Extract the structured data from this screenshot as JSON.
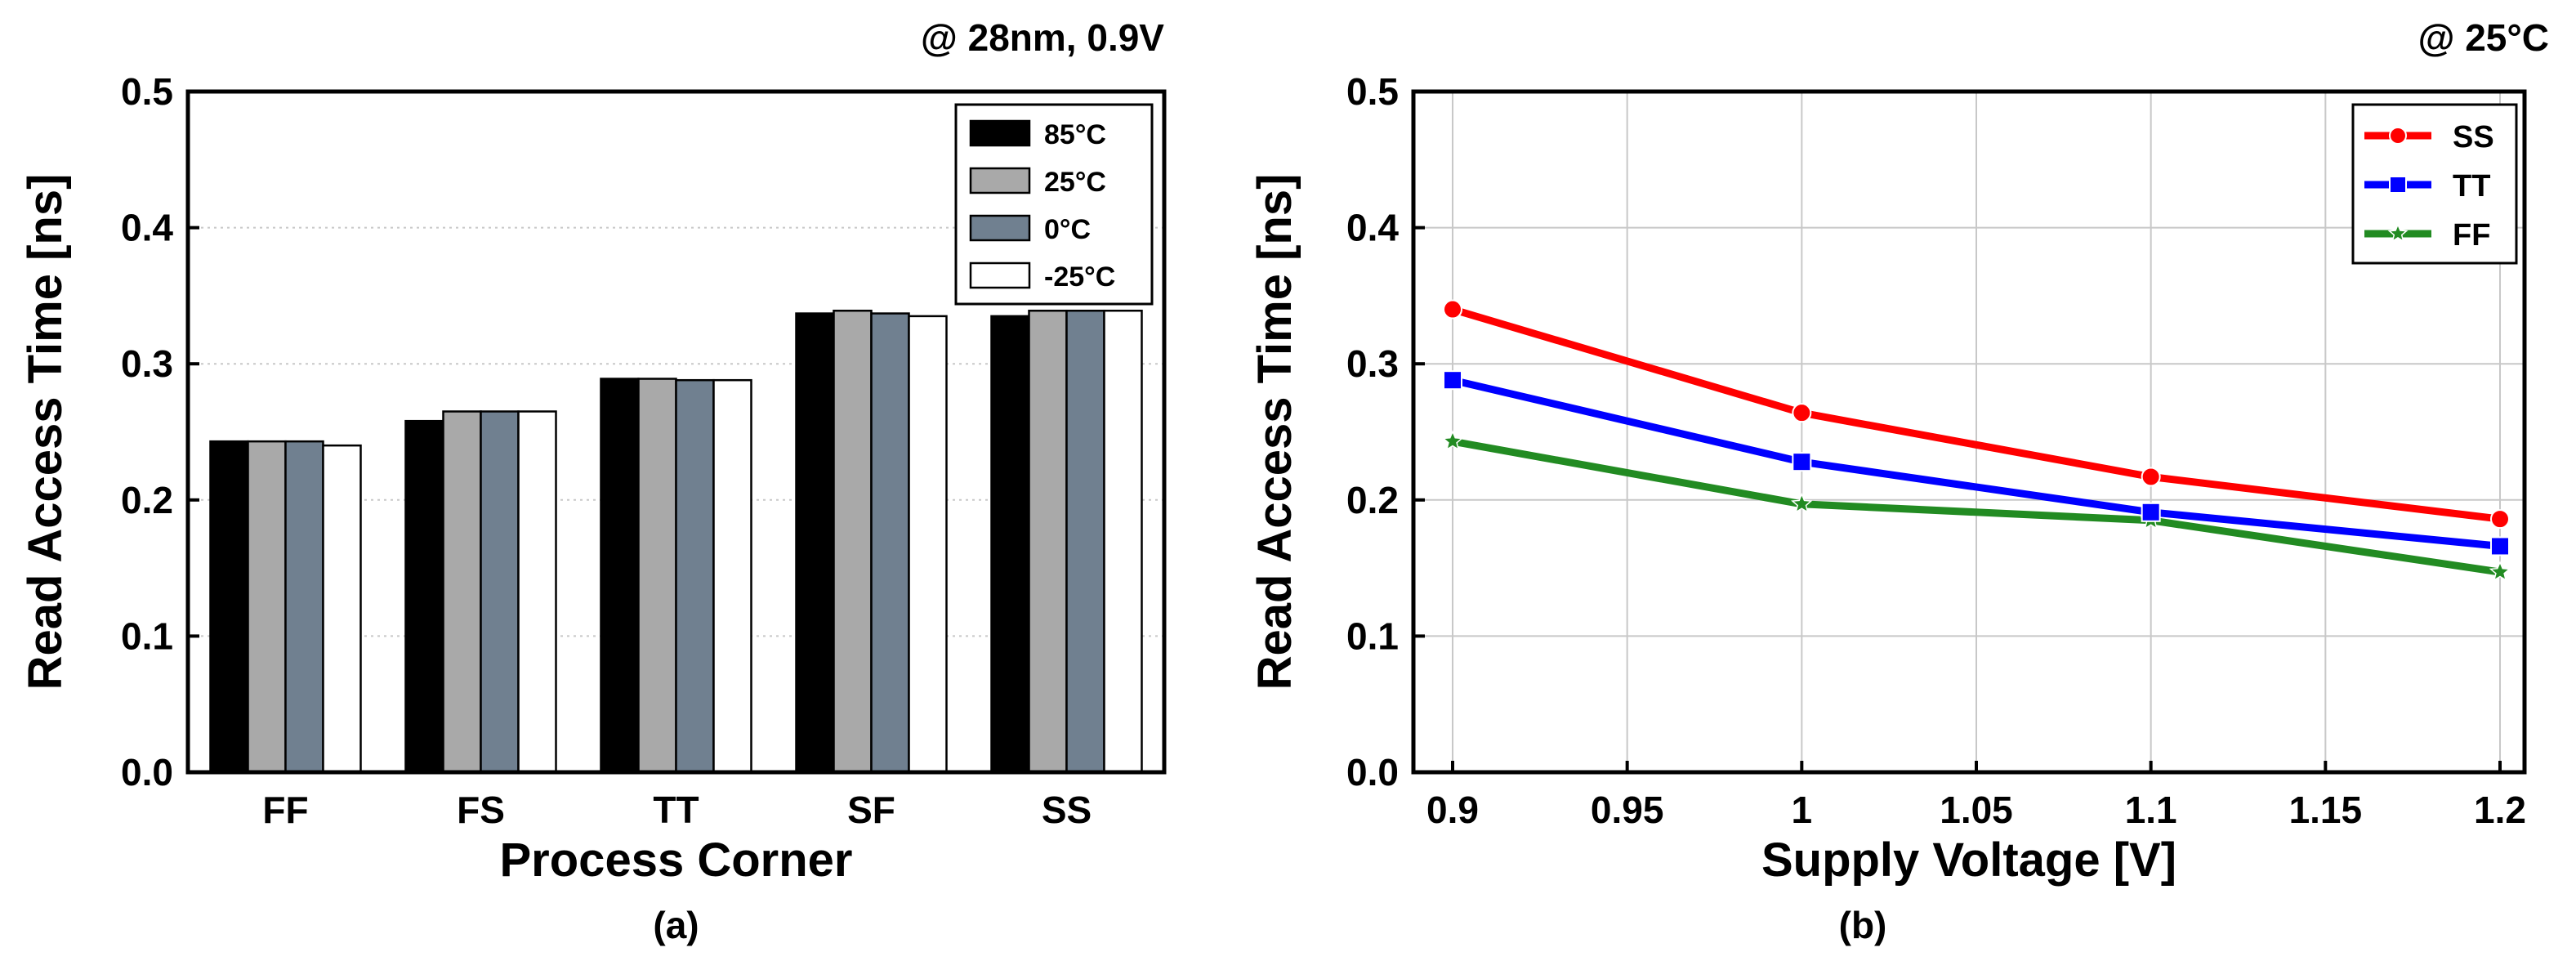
{
  "chart_data": [
    {
      "type": "bar",
      "panel": "(a)",
      "annotation": "@ 28nm, 0.9V",
      "xlabel": "Process Corner",
      "ylabel": "Read Access Time [ns]",
      "ylim": [
        0,
        0.5
      ],
      "yticks": [
        "0.0",
        "0.1",
        "0.2",
        "0.3",
        "0.4",
        "0.5"
      ],
      "categories": [
        "FF",
        "FS",
        "TT",
        "SF",
        "SS"
      ],
      "series": [
        {
          "name": "85°C",
          "color": "#000000",
          "values": [
            0.243,
            0.258,
            0.289,
            0.337,
            0.335
          ]
        },
        {
          "name": "25°C",
          "color": "#a9a9a9",
          "values": [
            0.243,
            0.265,
            0.289,
            0.339,
            0.339
          ]
        },
        {
          "name": "0°C",
          "color": "#708090",
          "values": [
            0.243,
            0.265,
            0.288,
            0.337,
            0.339
          ]
        },
        {
          "name": "-25°C",
          "color": "#ffffff",
          "values": [
            0.24,
            0.265,
            0.288,
            0.335,
            0.339
          ]
        }
      ],
      "legend": "top-right",
      "grid": true
    },
    {
      "type": "line",
      "panel": "(b)",
      "annotation": "@ 25°C",
      "xlabel": "Supply Voltage [V]",
      "ylabel": "Read Access Time [ns]",
      "xlim": [
        0.9,
        1.2
      ],
      "ylim": [
        0,
        0.5
      ],
      "xticks": [
        "0.9",
        "0.95",
        "1",
        "1.05",
        "1.1",
        "1.15",
        "1.2"
      ],
      "yticks": [
        "0.0",
        "0.1",
        "0.2",
        "0.3",
        "0.4",
        "0.5"
      ],
      "x": [
        0.9,
        1.0,
        1.1,
        1.2
      ],
      "series": [
        {
          "name": "SS",
          "color": "#ff0000",
          "marker": "circle",
          "values": [
            0.34,
            0.264,
            0.217,
            0.186
          ]
        },
        {
          "name": "TT",
          "color": "#0000ff",
          "marker": "square",
          "values": [
            0.288,
            0.228,
            0.191,
            0.166
          ]
        },
        {
          "name": "FF",
          "color": "#228b22",
          "marker": "star",
          "values": [
            0.243,
            0.197,
            0.185,
            0.147
          ]
        }
      ],
      "legend": "top-right",
      "grid": true
    }
  ]
}
